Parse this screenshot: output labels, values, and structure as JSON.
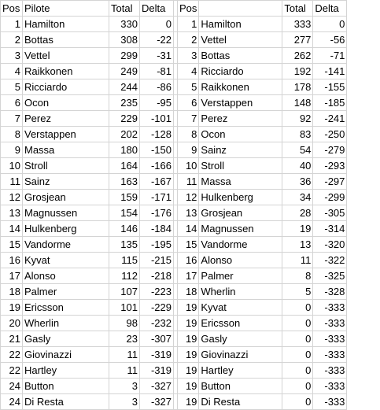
{
  "headers": {
    "left": {
      "pos": "Pos",
      "pilote": "Pilote",
      "total": "Total",
      "delta": "Delta"
    },
    "right": {
      "pos": "Pos",
      "pilote": "",
      "total": "Total",
      "delta": "Delta"
    }
  },
  "left": [
    [
      "1",
      "Hamilton",
      "330",
      "0"
    ],
    [
      "2",
      "Bottas",
      "308",
      "-22"
    ],
    [
      "3",
      "Vettel",
      "299",
      "-31"
    ],
    [
      "4",
      "Raikkonen",
      "249",
      "-81"
    ],
    [
      "5",
      "Ricciardo",
      "244",
      "-86"
    ],
    [
      "6",
      "Ocon",
      "235",
      "-95"
    ],
    [
      "7",
      "Perez",
      "229",
      "-101"
    ],
    [
      "8",
      "Verstappen",
      "202",
      "-128"
    ],
    [
      "9",
      "Massa",
      "180",
      "-150"
    ],
    [
      "10",
      "Stroll",
      "164",
      "-166"
    ],
    [
      "11",
      "Sainz",
      "163",
      "-167"
    ],
    [
      "12",
      "Grosjean",
      "159",
      "-171"
    ],
    [
      "13",
      "Magnussen",
      "154",
      "-176"
    ],
    [
      "14",
      "Hulkenberg",
      "146",
      "-184"
    ],
    [
      "15",
      "Vandorme",
      "135",
      "-195"
    ],
    [
      "16",
      "Kyvat",
      "115",
      "-215"
    ],
    [
      "17",
      "Alonso",
      "112",
      "-218"
    ],
    [
      "18",
      "Palmer",
      "107",
      "-223"
    ],
    [
      "19",
      "Ericsson",
      "101",
      "-229"
    ],
    [
      "20",
      "Wherlin",
      "98",
      "-232"
    ],
    [
      "21",
      "Gasly",
      "23",
      "-307"
    ],
    [
      "22",
      "Giovinazzi",
      "11",
      "-319"
    ],
    [
      "22",
      "Hartley",
      "11",
      "-319"
    ],
    [
      "24",
      "Button",
      "3",
      "-327"
    ],
    [
      "24",
      "Di Resta",
      "3",
      "-327"
    ]
  ],
  "right": [
    [
      "1",
      "Hamilton",
      "333",
      "0"
    ],
    [
      "2",
      "Vettel",
      "277",
      "-56"
    ],
    [
      "3",
      "Bottas",
      "262",
      "-71"
    ],
    [
      "4",
      "Ricciardo",
      "192",
      "-141"
    ],
    [
      "5",
      "Raikkonen",
      "178",
      "-155"
    ],
    [
      "6",
      "Verstappen",
      "148",
      "-185"
    ],
    [
      "7",
      "Perez",
      "92",
      "-241"
    ],
    [
      "8",
      "Ocon",
      "83",
      "-250"
    ],
    [
      "9",
      "Sainz",
      "54",
      "-279"
    ],
    [
      "10",
      "Stroll",
      "40",
      "-293"
    ],
    [
      "11",
      "Massa",
      "36",
      "-297"
    ],
    [
      "12",
      "Hulkenberg",
      "34",
      "-299"
    ],
    [
      "13",
      "Grosjean",
      "28",
      "-305"
    ],
    [
      "14",
      "Magnussen",
      "19",
      "-314"
    ],
    [
      "15",
      "Vandorme",
      "13",
      "-320"
    ],
    [
      "16",
      "Alonso",
      "11",
      "-322"
    ],
    [
      "17",
      "Palmer",
      "8",
      "-325"
    ],
    [
      "18",
      "Wherlin",
      "5",
      "-328"
    ],
    [
      "19",
      "Kyvat",
      "0",
      "-333"
    ],
    [
      "19",
      "Ericsson",
      "0",
      "-333"
    ],
    [
      "19",
      "Gasly",
      "0",
      "-333"
    ],
    [
      "19",
      "Giovinazzi",
      "0",
      "-333"
    ],
    [
      "19",
      "Hartley",
      "0",
      "-333"
    ],
    [
      "19",
      "Button",
      "0",
      "-333"
    ],
    [
      "19",
      "Di Resta",
      "0",
      "-333"
    ]
  ]
}
